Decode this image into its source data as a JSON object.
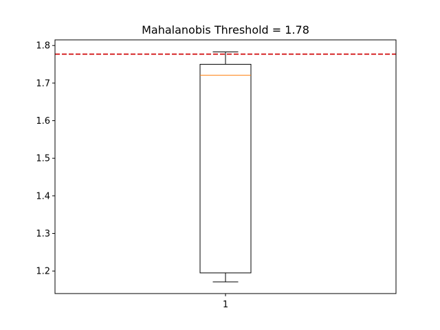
{
  "chart_data": {
    "type": "box",
    "title": "Mahalanobis Threshold = 1.78",
    "xlabel": "",
    "ylabel": "",
    "categories": [
      "1"
    ],
    "ylim": [
      1.14,
      1.815
    ],
    "yticks": [
      1.2,
      1.3,
      1.4,
      1.5,
      1.6,
      1.7,
      1.8
    ],
    "ytick_labels": [
      "1.2",
      "1.3",
      "1.4",
      "1.5",
      "1.6",
      "1.7",
      "1.8"
    ],
    "xtick_labels": [
      "1"
    ],
    "series": [
      {
        "whisker_low": 1.171,
        "q1": 1.195,
        "median": 1.721,
        "q3": 1.75,
        "whisker_high": 1.783
      }
    ],
    "threshold": {
      "value": 1.777,
      "style": "dashed",
      "color": "#d62728"
    },
    "colors": {
      "box": "#000000",
      "median": "#ff7f0e",
      "threshold": "#d62728"
    },
    "grid": false,
    "legend": "none"
  }
}
